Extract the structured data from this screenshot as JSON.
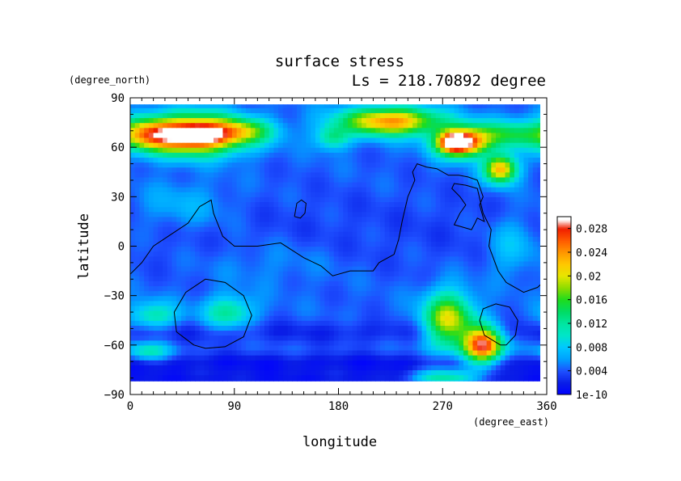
{
  "chart_data": {
    "type": "heatmap",
    "title": "surface stress",
    "subtitle": "Ls = 218.70892 degree",
    "xlabel": "longitude",
    "ylabel": "latitude",
    "xunits": "(degree_east)",
    "yunits": "(degree_north)",
    "xlim": [
      0,
      360
    ],
    "ylim": [
      -90,
      90
    ],
    "xticks": [
      0,
      90,
      180,
      270,
      360
    ],
    "yticks": [
      -90,
      -60,
      -30,
      0,
      30,
      60,
      90
    ],
    "colorbar": {
      "ticks": [
        {
          "value": 0,
          "label": "1e-10"
        },
        {
          "value": 0.004,
          "label": "0.004"
        },
        {
          "value": 0.008,
          "label": "0.008"
        },
        {
          "value": 0.012,
          "label": "0.012"
        },
        {
          "value": 0.016,
          "label": "0.016"
        },
        {
          "value": 0.02,
          "label": "0.02"
        },
        {
          "value": 0.024,
          "label": "0.024"
        },
        {
          "value": 0.028,
          "label": "0.028"
        }
      ],
      "range": [
        0,
        0.03
      ]
    },
    "field": {
      "base": 0.0045,
      "blobs": [
        {
          "lon": 55,
          "lat": 68,
          "slon": 30,
          "slat": 8,
          "amp": 0.028
        },
        {
          "lon": 60,
          "lat": 68,
          "slon": 10,
          "slat": 3,
          "amp": 0.01
        },
        {
          "lon": 15,
          "lat": 68,
          "slon": 15,
          "slat": 7,
          "amp": 0.01
        },
        {
          "lon": 100,
          "lat": 70,
          "slon": 18,
          "slat": 5,
          "amp": 0.008
        },
        {
          "lon": 225,
          "lat": 76,
          "slon": 30,
          "slat": 6,
          "amp": 0.02
        },
        {
          "lon": 175,
          "lat": 66,
          "slon": 10,
          "slat": 5,
          "amp": 0.008
        },
        {
          "lon": 285,
          "lat": 63,
          "slon": 15,
          "slat": 6,
          "amp": 0.026
        },
        {
          "lon": 280,
          "lat": 63,
          "slon": 7,
          "slat": 3,
          "amp": 0.012
        },
        {
          "lon": 325,
          "lat": 68,
          "slon": 25,
          "slat": 6,
          "amp": 0.01
        },
        {
          "lon": 320,
          "lat": 47,
          "slon": 10,
          "slat": 6,
          "amp": 0.019
        },
        {
          "lon": 275,
          "lat": -45,
          "slon": 15,
          "slat": 12,
          "amp": 0.016
        },
        {
          "lon": 305,
          "lat": -60,
          "slon": 12,
          "slat": 8,
          "amp": 0.024
        },
        {
          "lon": 270,
          "lat": -80,
          "slon": 20,
          "slat": 4,
          "amp": 0.01
        },
        {
          "lon": 20,
          "lat": -42,
          "slon": 15,
          "slat": 6,
          "amp": 0.007
        },
        {
          "lon": 85,
          "lat": -40,
          "slon": 15,
          "slat": 7,
          "amp": 0.008
        },
        {
          "lon": 15,
          "lat": -64,
          "slon": 15,
          "slat": 4,
          "amp": 0.007
        },
        {
          "lon": 330,
          "lat": 0,
          "slon": 15,
          "slat": 12,
          "amp": 0.004
        },
        {
          "lon": 45,
          "lat": 25,
          "slon": 30,
          "slat": 10,
          "amp": 0.003
        },
        {
          "lon": 120,
          "lat": -10,
          "slon": 40,
          "slat": 10,
          "amp": 0.0015
        }
      ],
      "bands": [
        {
          "lat": -82,
          "width": 7,
          "amp": -0.003
        },
        {
          "lat": -70,
          "width": 4,
          "amp": -0.0025
        },
        {
          "lat": -52,
          "width": 5,
          "amp": -0.002
        },
        {
          "lat": 10,
          "width": 20,
          "amp": -0.001
        }
      ]
    },
    "contours": [
      {
        "lon": [
          0,
          10,
          20,
          35,
          50,
          60,
          70,
          72,
          80,
          90,
          110,
          130,
          150,
          165,
          175,
          190,
          210,
          215,
          228,
          232,
          235,
          240,
          246,
          244,
          248,
          256,
          265,
          275,
          284,
          292,
          300,
          305,
          302,
          306,
          300,
          298,
          295,
          285,
          280,
          285,
          290,
          285,
          278,
          280,
          290,
          295,
          300,
          305,
          312,
          310,
          318,
          325,
          340,
          352,
          360
        ],
        "lat": [
          -17,
          -10,
          0,
          7,
          14,
          24,
          28,
          20,
          6,
          0,
          0,
          2,
          -7,
          -12,
          -18,
          -15,
          -15,
          -10,
          -5,
          4,
          15,
          30,
          40,
          45,
          50,
          48,
          47,
          43,
          43,
          42,
          40,
          30,
          25,
          15,
          17,
          14,
          10,
          12,
          13,
          20,
          25,
          30,
          35,
          38,
          37,
          36,
          35,
          20,
          10,
          0,
          -15,
          -22,
          -28,
          -25,
          -20
        ]
      },
      {
        "lon": [
          142,
          147,
          151,
          152,
          148,
          144,
          142
        ],
        "lat": [
          18,
          17,
          20,
          26,
          28,
          26,
          18
        ]
      },
      {
        "lon": [
          55,
          40,
          38,
          48,
          65,
          82,
          98,
          105,
          98,
          82,
          65,
          55
        ],
        "lat": [
          -60,
          -52,
          -40,
          -28,
          -20,
          -22,
          -30,
          -42,
          -55,
          -61,
          -62,
          -60
        ]
      },
      {
        "lon": [
          320,
          306,
          302,
          305,
          316,
          328,
          335,
          333,
          325,
          320
        ],
        "lat": [
          -60,
          -54,
          -45,
          -38,
          -35,
          -37,
          -45,
          -54,
          -60,
          -60
        ]
      }
    ]
  }
}
